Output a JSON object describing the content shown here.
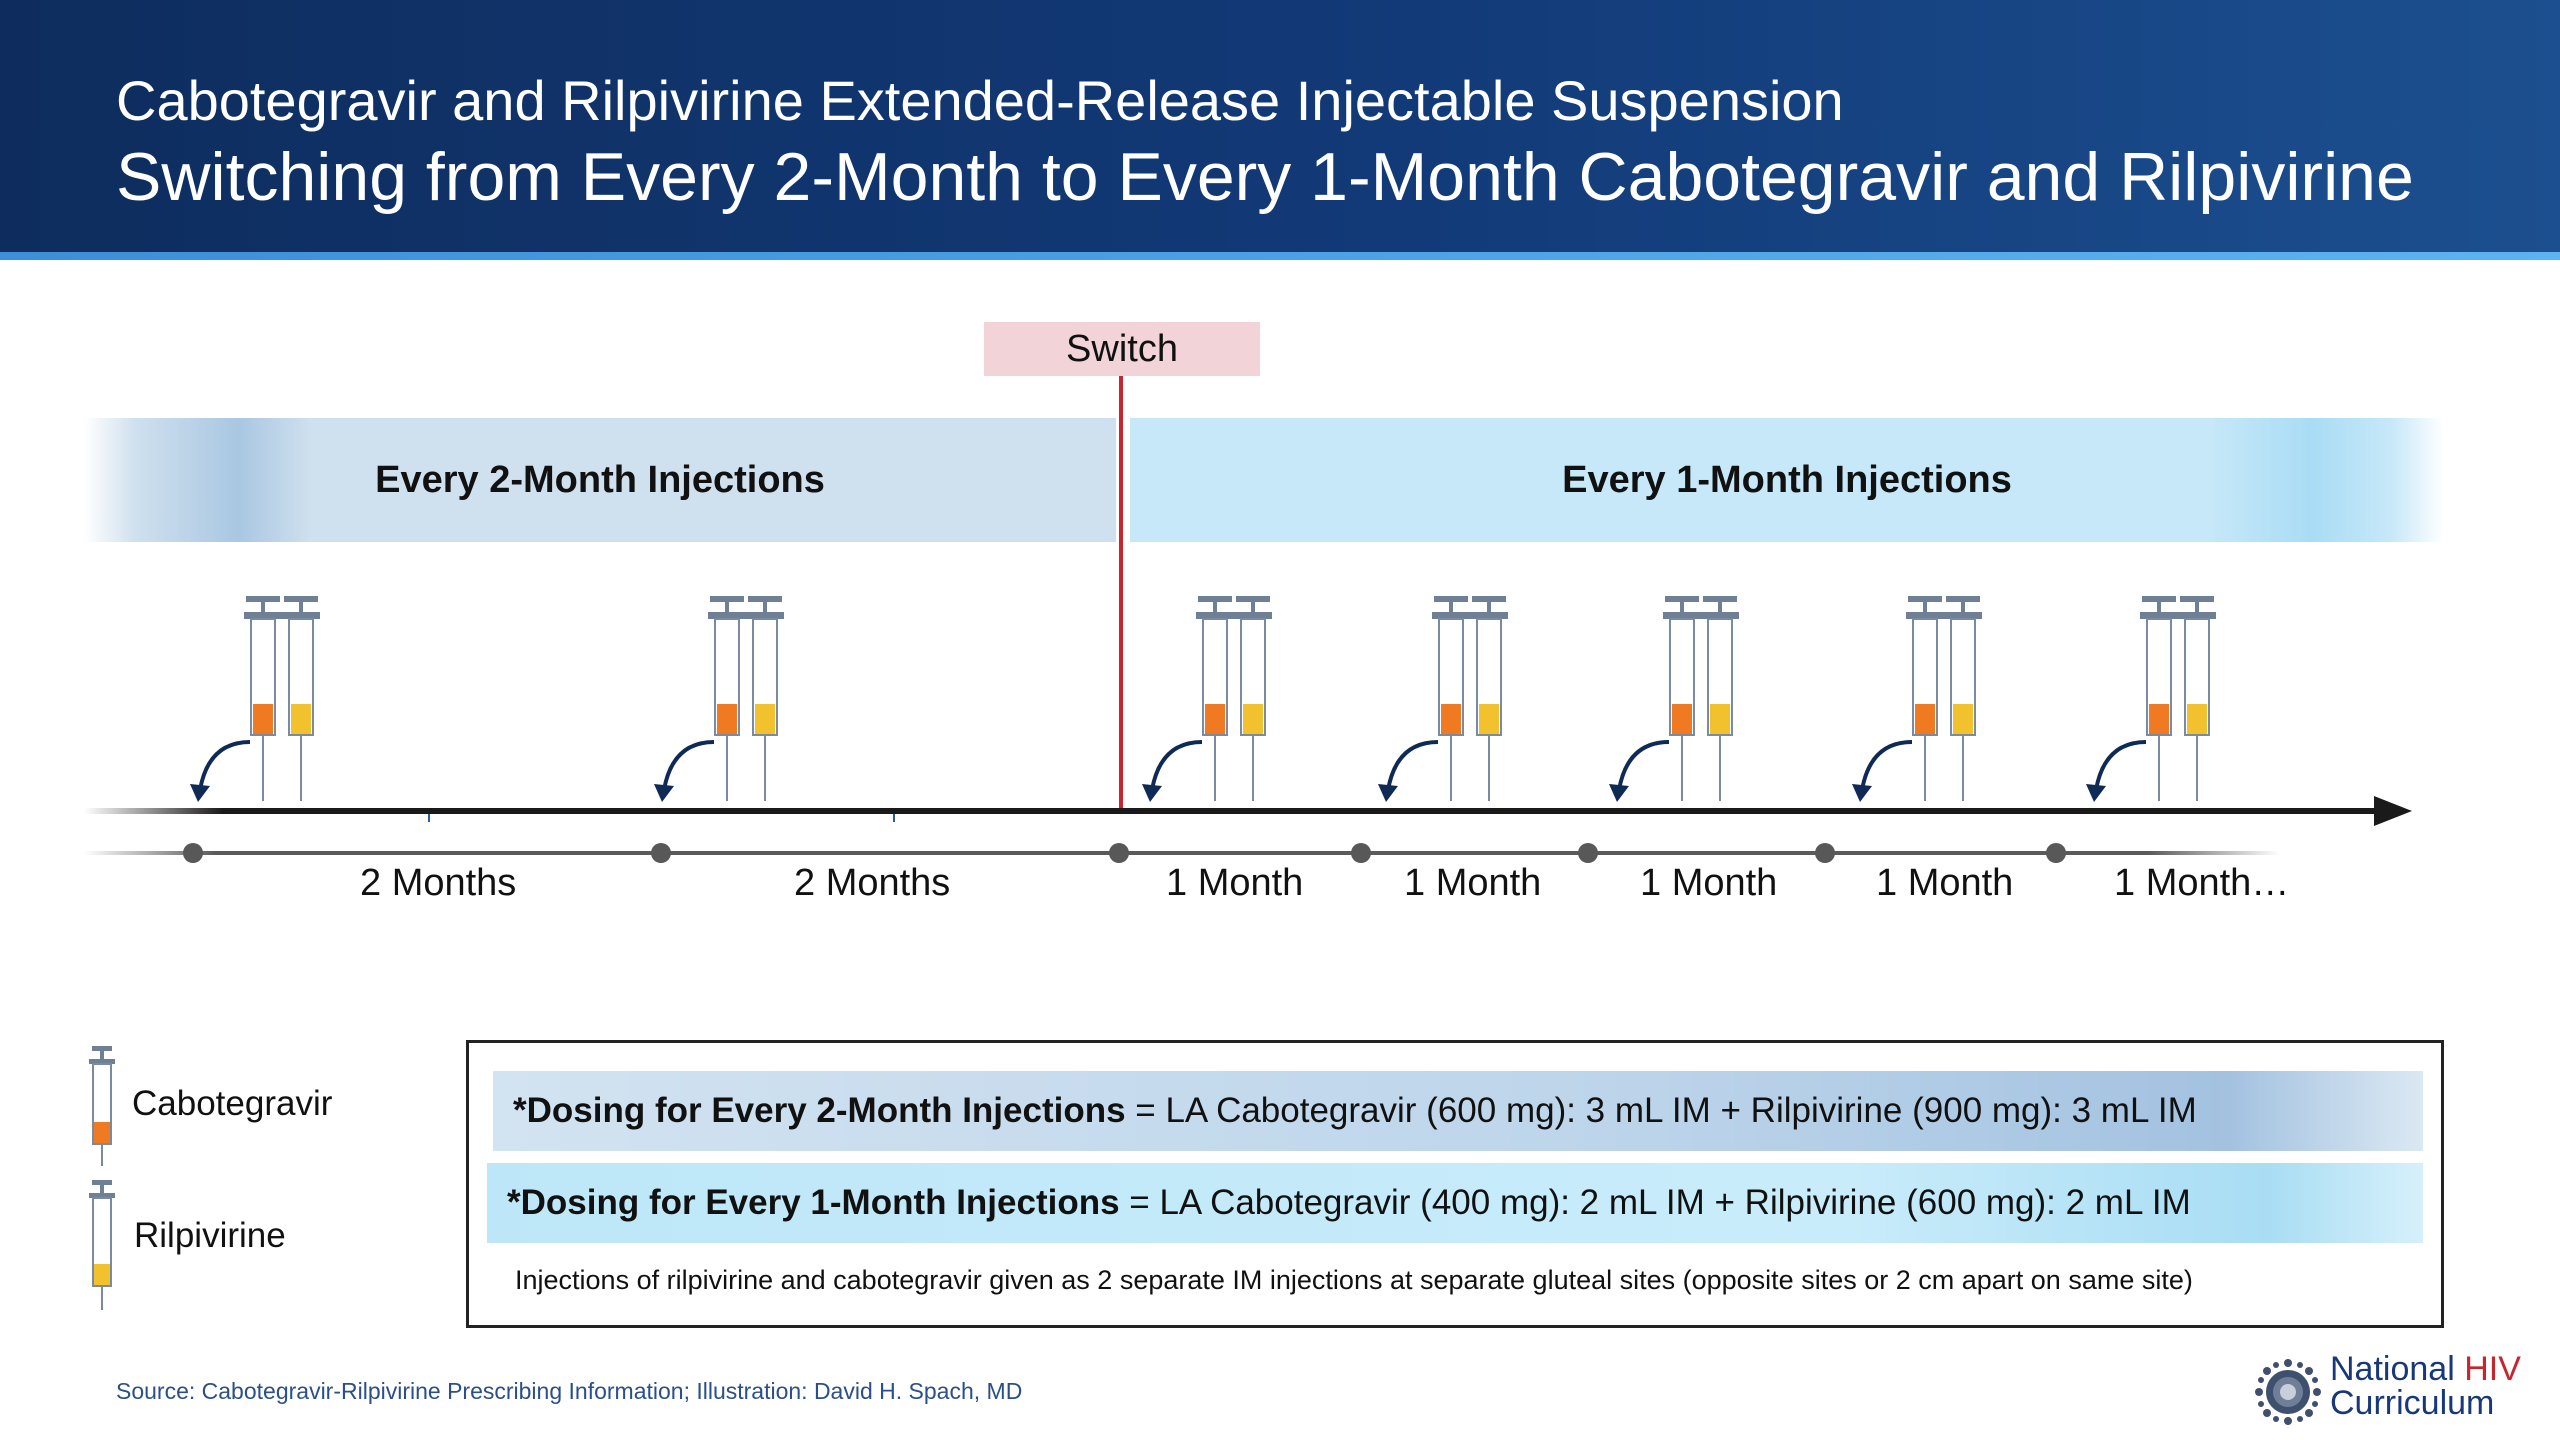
{
  "header": {
    "subtitle": "Cabotegravir and Rilpivirine Extended-Release Injectable Suspension",
    "title": "Switching from Every 2-Month to Every 1-Month Cabotegravir and Rilpivirine"
  },
  "diagram": {
    "switch_label": "Switch",
    "bands": {
      "left": "Every 2-Month Injections",
      "right": "Every 1-Month Injections"
    },
    "intervals": [
      "2 Months",
      "2 Months",
      "1 Month",
      "1 Month",
      "1 Month",
      "1 Month",
      "1 Month…"
    ]
  },
  "legend": {
    "cabotegravir": "Cabotegravir",
    "rilpivirine": "Rilpivirine"
  },
  "dosing": {
    "row1_bold": "*Dosing for Every 2-Month Injections",
    "row1_rest": " = LA Cabotegravir (600 mg): 3 mL IM + Rilpivirine (900 mg): 3 mL IM",
    "row2_bold": "*Dosing for Every 1-Month Injections",
    "row2_rest": " = LA Cabotegravir (400 mg): 2 mL IM + Rilpivirine (600 mg): 2 mL IM",
    "note": "Injections of rilpivirine and cabotegravir given as 2 separate IM injections at separate gluteal sites (opposite sites or 2 cm apart on same site)"
  },
  "footer": {
    "source": "Source: Cabotegravir-Rilpivirine Prescribing Information; Illustration: David H. Spach, MD",
    "brand_line1_a": "National ",
    "brand_line1_b": "HIV",
    "brand_line2": "Curriculum"
  },
  "colors": {
    "header_bg": "#123a78",
    "switch_line": "#c8262f",
    "switch_box": "#f2d3d7",
    "cabotegravir_fill": "#f07a22",
    "rilpivirine_fill": "#f2c12e"
  }
}
